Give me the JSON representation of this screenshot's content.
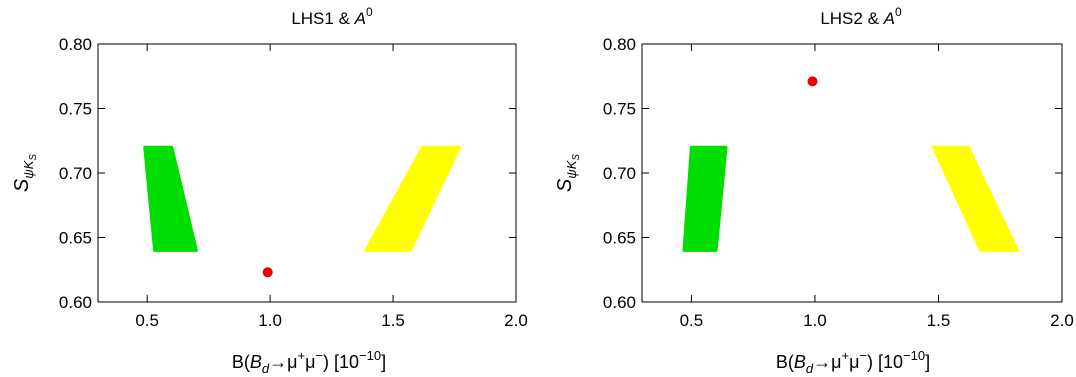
{
  "chart_data": [
    {
      "type": "scatter",
      "title": "LHS1 & A0",
      "title_parts": {
        "pre": "LHS1 & ",
        "sym": "A",
        "sup": "0"
      },
      "xlabel_parts": {
        "pre": "B(",
        "sym": "B",
        "sub": "d",
        "mid": "→μ",
        "sup1": "+",
        "mid2": "μ",
        "sup2": "−",
        "post": ")  [10",
        "exp": "−10",
        "end": "]"
      },
      "ylabel_parts": {
        "sym": "S",
        "sub": "ψK",
        "subsub": "S"
      },
      "xlim": [
        0.3,
        2.0
      ],
      "ylim": [
        0.6,
        0.8
      ],
      "xticks": [
        "0.5",
        "1.0",
        "1.5",
        "2.0"
      ],
      "xtick_values": [
        0.5,
        1.0,
        1.5,
        2.0
      ],
      "yticks": [
        "0.60",
        "0.65",
        "0.70",
        "0.75",
        "0.80"
      ],
      "ytick_values": [
        0.6,
        0.65,
        0.7,
        0.75,
        0.8
      ],
      "regions": [
        {
          "color": "#00dd00",
          "polygon": [
            [
              0.49,
              0.72
            ],
            [
              0.6,
              0.72
            ],
            [
              0.7,
              0.64
            ],
            [
              0.53,
              0.64
            ]
          ]
        },
        {
          "color": "#ffff00",
          "polygon": [
            [
              1.62,
              0.72
            ],
            [
              1.77,
              0.72
            ],
            [
              1.57,
              0.64
            ],
            [
              1.39,
              0.64
            ]
          ]
        }
      ],
      "points": [
        {
          "x": 0.99,
          "y": 0.623,
          "color": "#ee0000"
        }
      ]
    },
    {
      "type": "scatter",
      "title": "LHS2 & A0",
      "title_parts": {
        "pre": "LHS2 & ",
        "sym": "A",
        "sup": "0"
      },
      "xlabel_parts": {
        "pre": "B(",
        "sym": "B",
        "sub": "d",
        "mid": "→μ",
        "sup1": "+",
        "mid2": "μ",
        "sup2": "−",
        "post": ")  [10",
        "exp": "−10",
        "end": "]"
      },
      "ylabel_parts": {
        "sym": "S",
        "sub": "ψK",
        "subsub": "S"
      },
      "xlim": [
        0.3,
        2.0
      ],
      "ylim": [
        0.6,
        0.8
      ],
      "xticks": [
        "0.5",
        "1.0",
        "1.5",
        "2.0"
      ],
      "xtick_values": [
        0.5,
        1.0,
        1.5,
        2.0
      ],
      "yticks": [
        "0.60",
        "0.65",
        "0.70",
        "0.75",
        "0.80"
      ],
      "ytick_values": [
        0.6,
        0.65,
        0.7,
        0.75,
        0.8
      ],
      "regions": [
        {
          "color": "#00dd00",
          "polygon": [
            [
              0.5,
              0.72
            ],
            [
              0.64,
              0.72
            ],
            [
              0.6,
              0.64
            ],
            [
              0.47,
              0.64
            ]
          ]
        },
        {
          "color": "#ffff00",
          "polygon": [
            [
              1.48,
              0.72
            ],
            [
              1.62,
              0.72
            ],
            [
              1.82,
              0.64
            ],
            [
              1.67,
              0.64
            ]
          ]
        }
      ],
      "points": [
        {
          "x": 0.99,
          "y": 0.771,
          "color": "#ee0000"
        }
      ]
    }
  ]
}
